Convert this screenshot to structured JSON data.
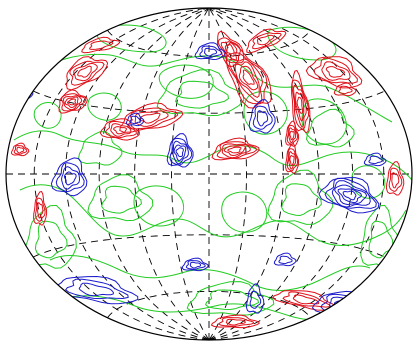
{
  "map": {
    "projection": "hammer-aitoff",
    "graticule": {
      "longitude_step_deg": 30,
      "latitude_step_deg": 30,
      "style": "dashed"
    },
    "contour_colors": {
      "positive": "#e0101a",
      "zero": "#22cc22",
      "negative": "#1a1acc",
      "frame": "#000000",
      "graticule": "#000000"
    }
  }
}
